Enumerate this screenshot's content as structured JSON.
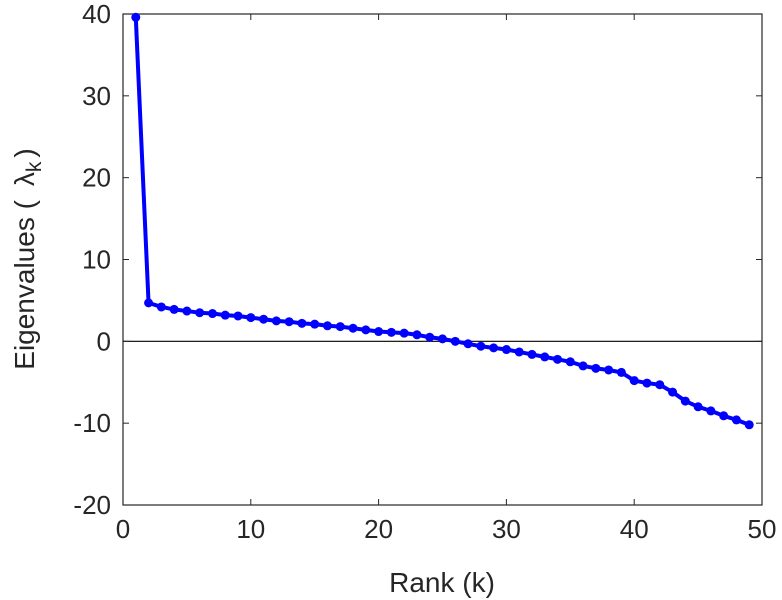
{
  "chart_data": {
    "type": "line",
    "xlabel": "Rank (k)",
    "ylabel": {
      "main": "Eigenvalues (",
      "symbol": "λ",
      "subscript": "k",
      "close": ")"
    },
    "xlim": [
      0,
      50
    ],
    "ylim": [
      -20,
      40
    ],
    "xticks": [
      0,
      10,
      20,
      30,
      40,
      50
    ],
    "yticks": [
      -20,
      -10,
      0,
      10,
      20,
      30,
      40
    ],
    "grid": false,
    "zero_line": true,
    "series": [
      {
        "color": "#0000ff",
        "x": [
          1,
          2,
          3,
          4,
          5,
          6,
          7,
          8,
          9,
          10,
          11,
          12,
          13,
          14,
          15,
          16,
          17,
          18,
          19,
          20,
          21,
          22,
          23,
          24,
          25,
          26,
          27,
          28,
          29,
          30,
          31,
          32,
          33,
          34,
          35,
          36,
          37,
          38,
          39,
          40,
          41,
          42,
          43,
          44,
          45,
          46,
          47,
          48,
          49
        ],
        "values": [
          39.6,
          4.7,
          4.2,
          3.9,
          3.7,
          3.5,
          3.4,
          3.2,
          3.1,
          2.9,
          2.7,
          2.5,
          2.4,
          2.2,
          2.1,
          1.9,
          1.8,
          1.6,
          1.4,
          1.2,
          1.1,
          1.0,
          0.8,
          0.5,
          0.3,
          0.0,
          -0.3,
          -0.6,
          -0.8,
          -1.0,
          -1.3,
          -1.6,
          -1.9,
          -2.2,
          -2.5,
          -3.0,
          -3.3,
          -3.5,
          -3.8,
          -4.8,
          -5.1,
          -5.3,
          -6.2,
          -7.3,
          -8.0,
          -8.5,
          -9.1,
          -9.6,
          -10.2
        ]
      }
    ]
  }
}
